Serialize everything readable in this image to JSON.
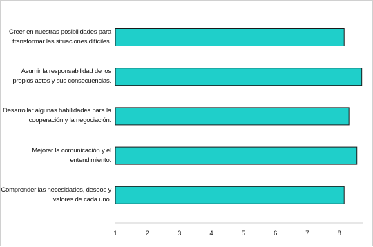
{
  "chart_data": {
    "type": "bar",
    "orientation": "horizontal",
    "title": "",
    "xlabel": "",
    "ylabel": "",
    "categories": [
      "Creer en nuestras posibilidades para transformar las situaciones difíciles.",
      "Asumir la responsabilidad de los propios actos y sus consecuencias.",
      "Desarrollar algunas habilidades para la cooperación y la negociación.",
      "Mejorar la comunicación y el entendimiento.",
      "Comprender las necesidades, deseos y valores de cada uno."
    ],
    "values": [
      8.15,
      8.7,
      8.3,
      8.55,
      8.15
    ],
    "xlim": [
      1,
      8.75
    ],
    "xticks": [
      "1",
      "2",
      "3",
      "4",
      "5",
      "6",
      "7",
      "8"
    ],
    "bar_color": "#1fcfca",
    "bar_edge_color": "#1a1a1a",
    "grid": false,
    "legend": "none"
  }
}
